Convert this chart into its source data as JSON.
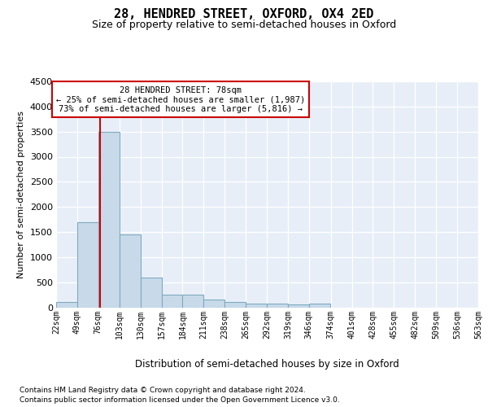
{
  "title": "28, HENDRED STREET, OXFORD, OX4 2ED",
  "subtitle": "Size of property relative to semi-detached houses in Oxford",
  "xlabel": "Distribution of semi-detached houses by size in Oxford",
  "ylabel": "Number of semi-detached properties",
  "footnote1": "Contains HM Land Registry data © Crown copyright and database right 2024.",
  "footnote2": "Contains public sector information licensed under the Open Government Licence v3.0.",
  "annotation_line1": "28 HENDRED STREET: 78sqm",
  "annotation_line2": "← 25% of semi-detached houses are smaller (1,987)",
  "annotation_line3": "73% of semi-detached houses are larger (5,816) →",
  "property_size": 78,
  "bin_starts": [
    22,
    49,
    76,
    103,
    130,
    157,
    184,
    211,
    238,
    265,
    292,
    319,
    346,
    374,
    401,
    428,
    455,
    482,
    509,
    536
  ],
  "bin_labels": [
    "22sqm",
    "49sqm",
    "76sqm",
    "103sqm",
    "130sqm",
    "157sqm",
    "184sqm",
    "211sqm",
    "238sqm",
    "265sqm",
    "292sqm",
    "319sqm",
    "346sqm",
    "374sqm",
    "401sqm",
    "428sqm",
    "455sqm",
    "482sqm",
    "509sqm",
    "536sqm",
    "563sqm"
  ],
  "bar_values": [
    100,
    1700,
    3500,
    1450,
    600,
    250,
    250,
    150,
    100,
    75,
    75,
    50,
    75,
    0,
    0,
    0,
    0,
    0,
    0,
    0
  ],
  "bar_color": "#c8daea",
  "bar_edge_color": "#7faabf",
  "line_color": "#cc0000",
  "annotation_box_edge_color": "#cc0000",
  "bg_color": "#e8eef8",
  "ylim": [
    0,
    4500
  ],
  "yticks": [
    0,
    500,
    1000,
    1500,
    2000,
    2500,
    3000,
    3500,
    4000,
    4500
  ],
  "bin_width": 27,
  "title_fontsize": 11,
  "subtitle_fontsize": 9,
  "ylabel_fontsize": 8,
  "xlabel_fontsize": 8.5,
  "ytick_fontsize": 8,
  "xtick_fontsize": 7,
  "annotation_fontsize": 7.5,
  "footnote_fontsize": 6.5
}
